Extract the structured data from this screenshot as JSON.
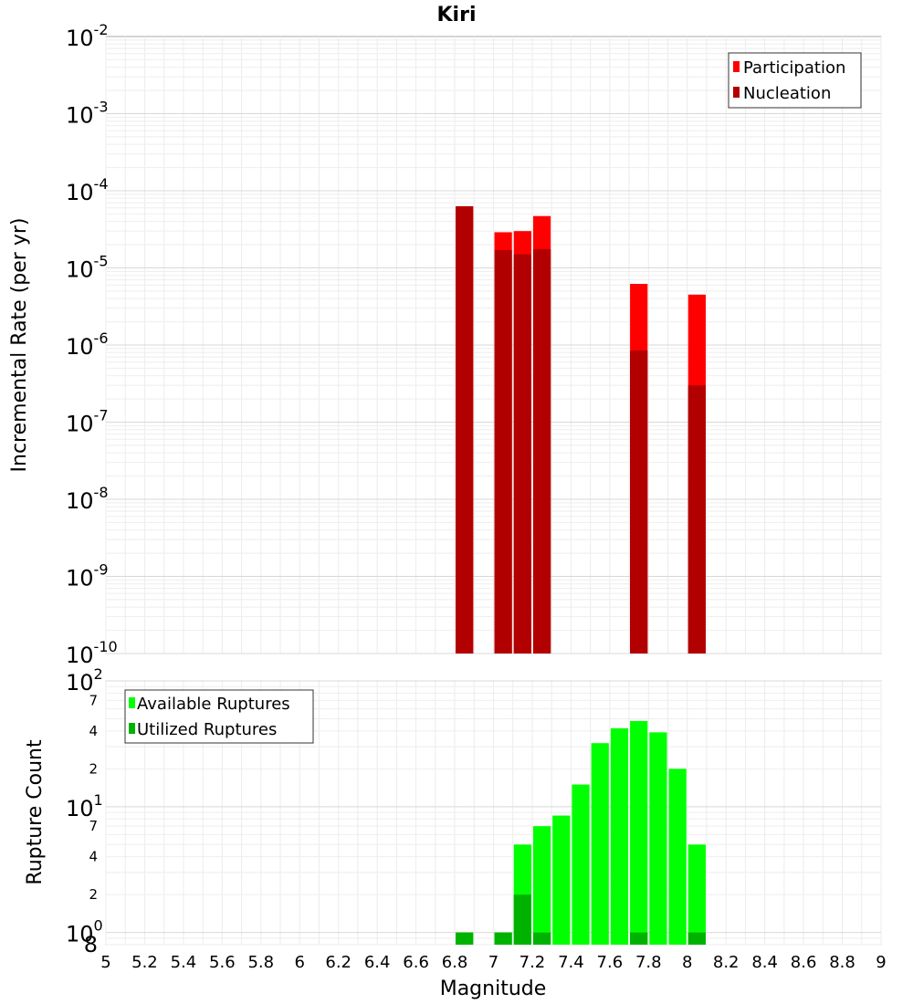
{
  "chart_data": [
    {
      "type": "bar",
      "title": "Kiri",
      "xlabel": "",
      "ylabel": "Incremental Rate (per yr)",
      "yscale": "log",
      "ylim": [
        1e-10,
        0.01
      ],
      "xlim": [
        5,
        9
      ],
      "grid": true,
      "legend_position": "top-right",
      "y_ticks": [
        {
          "base": "10",
          "exp": "-10",
          "value": -10
        },
        {
          "base": "10",
          "exp": "-9",
          "value": -9
        },
        {
          "base": "10",
          "exp": "-8",
          "value": -8
        },
        {
          "base": "10",
          "exp": "-7",
          "value": -7
        },
        {
          "base": "10",
          "exp": "-6",
          "value": -6
        },
        {
          "base": "10",
          "exp": "-5",
          "value": -5
        },
        {
          "base": "10",
          "exp": "-4",
          "value": -4
        },
        {
          "base": "10",
          "exp": "-3",
          "value": -3
        },
        {
          "base": "10",
          "exp": "-2",
          "value": -2
        }
      ],
      "series": [
        {
          "name": "Participation",
          "color": "#ff0000",
          "x": [
            6.85,
            7.05,
            7.15,
            7.25,
            7.75,
            8.05
          ],
          "values": [
            6.3e-05,
            2.9e-05,
            3e-05,
            4.7e-05,
            6.2e-06,
            4.5e-06
          ]
        },
        {
          "name": "Nucleation",
          "color": "#b20000",
          "x": [
            6.85,
            7.05,
            7.15,
            7.25,
            7.75,
            8.05
          ],
          "values": [
            6.3e-05,
            1.7e-05,
            1.5e-05,
            1.75e-05,
            8.5e-07,
            3e-07
          ]
        }
      ]
    },
    {
      "type": "bar",
      "title": "",
      "xlabel": "Magnitude",
      "ylabel": "Rupture Count",
      "yscale": "log",
      "ylim": [
        0.8,
        100
      ],
      "xlim": [
        5,
        9
      ],
      "grid": true,
      "legend_position": "top-left",
      "x_ticks": [
        "5",
        "5.2",
        "5.4",
        "5.6",
        "5.8",
        "6",
        "6.2",
        "6.4",
        "6.6",
        "6.8",
        "7",
        "7.2",
        "7.4",
        "7.6",
        "7.8",
        "8",
        "8.2",
        "8.4",
        "8.6",
        "8.8",
        "9"
      ],
      "y_major_ticks": [
        {
          "base": "10",
          "exp": "0",
          "value": 1
        },
        {
          "base": "10",
          "exp": "1",
          "value": 10
        },
        {
          "base": "10",
          "exp": "2",
          "value": 100
        }
      ],
      "y_minor_ticks": [
        {
          "label": "8",
          "value": 0.8
        },
        {
          "label": "2",
          "value": 2
        },
        {
          "label": "4",
          "value": 4
        },
        {
          "label": "7",
          "value": 7
        },
        {
          "label": "2",
          "value": 20
        },
        {
          "label": "4",
          "value": 40
        },
        {
          "label": "7",
          "value": 70
        }
      ],
      "series": [
        {
          "name": "Available Ruptures",
          "color": "#00ff00",
          "x": [
            6.85,
            7.05,
            7.15,
            7.25,
            7.35,
            7.45,
            7.55,
            7.65,
            7.75,
            7.85,
            7.95,
            8.05
          ],
          "values": [
            1,
            1,
            5,
            7,
            8.5,
            15,
            32,
            42,
            48,
            39,
            20,
            5
          ]
        },
        {
          "name": "Utilized Ruptures",
          "color": "#00b200",
          "x": [
            6.85,
            7.05,
            7.15,
            7.25,
            7.75,
            8.05
          ],
          "values": [
            1,
            1,
            2,
            1,
            1,
            1
          ]
        }
      ]
    }
  ]
}
